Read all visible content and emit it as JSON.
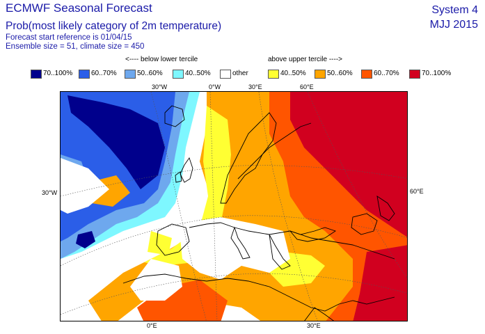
{
  "header": {
    "title": "ECMWF Seasonal Forecast",
    "subtitle": "Prob(most likely category of 2m temperature)",
    "forecast_start": "Forecast start reference is 01/04/15",
    "ensemble": "Ensemble size = 51, climate size = 450",
    "system": "System 4",
    "period": "MJJ 2015"
  },
  "legend": {
    "below_label": "<---- below lower tercile",
    "above_label": "above upper tercile ---->",
    "items": [
      {
        "label": "70..100%",
        "color": "#00008c"
      },
      {
        "label": "60..70%",
        "color": "#2b5ee8"
      },
      {
        "label": "50..60%",
        "color": "#6ea8ee"
      },
      {
        "label": "40..50%",
        "color": "#7ef7ff"
      },
      {
        "label": "other",
        "color": "#ffffff"
      },
      {
        "label": "40..50%",
        "color": "#ffff33"
      },
      {
        "label": "50..60%",
        "color": "#ffa500"
      },
      {
        "label": "60..70%",
        "color": "#ff5500"
      },
      {
        "label": "70..100%",
        "color": "#d1001f"
      }
    ]
  },
  "map": {
    "top_ticks": [
      "30°W",
      "0°W",
      "30°E",
      "60°E"
    ],
    "left_tick": "30°W",
    "right_tick": "60°E",
    "bottom_ticks": [
      "0°E",
      "30°E"
    ]
  }
}
